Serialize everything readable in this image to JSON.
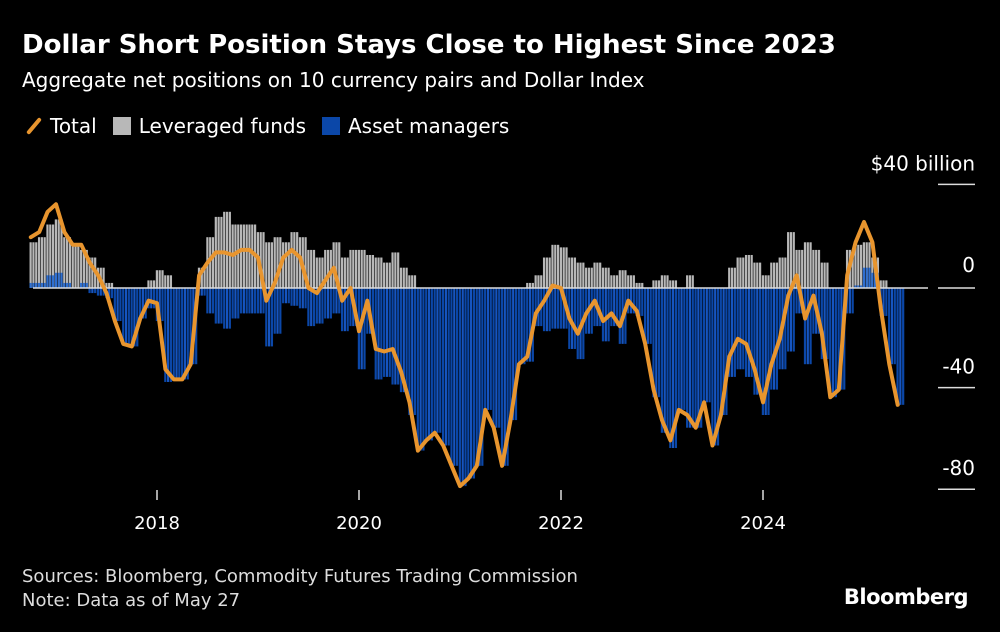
{
  "title": "Dollar Short Position Stays Close to Highest Since 2023",
  "subtitle": "Aggregate net positions on 10 currency pairs and Dollar Index",
  "footer": {
    "sources": "Sources: Bloomberg, Commodity Futures Trading Commission",
    "note": "Note: Data as of May 27"
  },
  "logo": "Bloomberg",
  "colors": {
    "total": "#e8952e",
    "leveraged": "#b8b8b8",
    "asset": "#0b47a8",
    "background": "#000000"
  },
  "chart_data": {
    "type": "bar",
    "overlay": "line",
    "stacked": true,
    "title": "Dollar Short Position Stays Close to Highest Since 2023",
    "subtitle": "Aggregate net positions on 10 currency pairs and Dollar Index",
    "unit_label": "$40 billion",
    "ylim": [
      -85,
      45
    ],
    "yticks": [
      40,
      0,
      -40,
      -80
    ],
    "ytick_labels": [
      "$40 billion",
      "0",
      "-40",
      "-80"
    ],
    "xticks": [
      "2018",
      "2020",
      "2022",
      "2024"
    ],
    "legend": {
      "position": "top-left",
      "entries": [
        "Total",
        "Leveraged funds",
        "Asset managers"
      ]
    },
    "grid": false,
    "x": [
      "2016-10",
      "2016-11",
      "2016-12",
      "2017-01",
      "2017-02",
      "2017-03",
      "2017-04",
      "2017-05",
      "2017-06",
      "2017-07",
      "2017-08",
      "2017-09",
      "2017-10",
      "2017-11",
      "2017-12",
      "2018-01",
      "2018-02",
      "2018-03",
      "2018-04",
      "2018-05",
      "2018-06",
      "2018-07",
      "2018-08",
      "2018-09",
      "2018-10",
      "2018-11",
      "2018-12",
      "2019-01",
      "2019-02",
      "2019-03",
      "2019-04",
      "2019-05",
      "2019-06",
      "2019-07",
      "2019-08",
      "2019-09",
      "2019-10",
      "2019-11",
      "2019-12",
      "2020-01",
      "2020-02",
      "2020-03",
      "2020-04",
      "2020-05",
      "2020-06",
      "2020-07",
      "2020-08",
      "2020-09",
      "2020-10",
      "2020-11",
      "2020-12",
      "2021-01",
      "2021-02",
      "2021-03",
      "2021-04",
      "2021-05",
      "2021-06",
      "2021-07",
      "2021-08",
      "2021-09",
      "2021-10",
      "2021-11",
      "2021-12",
      "2022-01",
      "2022-02",
      "2022-03",
      "2022-04",
      "2022-05",
      "2022-06",
      "2022-07",
      "2022-08",
      "2022-09",
      "2022-10",
      "2022-11",
      "2022-12",
      "2023-01",
      "2023-02",
      "2023-03",
      "2023-04",
      "2023-05",
      "2023-06",
      "2023-07",
      "2023-08",
      "2023-09",
      "2023-10",
      "2023-11",
      "2023-12",
      "2024-01",
      "2024-02",
      "2024-03",
      "2024-04",
      "2024-05",
      "2024-06",
      "2024-07",
      "2024-08",
      "2024-09",
      "2024-10",
      "2024-11",
      "2024-12",
      "2025-01",
      "2025-02",
      "2025-03",
      "2025-04",
      "2025-05"
    ],
    "series": [
      {
        "name": "Total",
        "type": "line",
        "values": [
          20,
          22,
          30,
          33,
          22,
          17,
          17,
          10,
          5,
          -2,
          -13,
          -22,
          -23,
          -12,
          -5,
          -6,
          -32,
          -36,
          -36,
          -30,
          5,
          10,
          14,
          14,
          13,
          15,
          15,
          12,
          -5,
          2,
          12,
          15,
          12,
          0,
          -2,
          3,
          8,
          -5,
          0,
          -17,
          -5,
          -24,
          -25,
          -24,
          -33,
          -45,
          -64,
          -60,
          -57,
          -62,
          -70,
          -78,
          -75,
          -70,
          -48,
          -55,
          -70,
          -52,
          -30,
          -27,
          -10,
          -5,
          1,
          0,
          -12,
          -18,
          -10,
          -5,
          -13,
          -10,
          -15,
          -5,
          -9,
          -22,
          -40,
          -52,
          -60,
          -48,
          -50,
          -55,
          -45,
          -62,
          -50,
          -27,
          -20,
          -22,
          -32,
          -45,
          -30,
          -20,
          -3,
          5,
          -12,
          -3,
          -18,
          -43,
          -40,
          5,
          18,
          26,
          18,
          -8,
          -30,
          -46
        ]
      },
      {
        "name": "Leveraged funds",
        "type": "bar",
        "values": [
          18,
          20,
          25,
          27,
          20,
          17,
          15,
          12,
          8,
          2,
          0,
          0,
          0,
          0,
          3,
          7,
          5,
          0,
          0,
          0,
          8,
          20,
          28,
          30,
          25,
          25,
          25,
          22,
          18,
          20,
          18,
          22,
          20,
          15,
          12,
          15,
          18,
          12,
          15,
          15,
          13,
          12,
          10,
          14,
          8,
          5,
          0,
          0,
          0,
          0,
          0,
          0,
          0,
          0,
          0,
          0,
          0,
          0,
          0,
          2,
          5,
          12,
          17,
          16,
          12,
          10,
          8,
          10,
          8,
          5,
          7,
          5,
          2,
          0,
          3,
          5,
          3,
          0,
          5,
          0,
          0,
          0,
          0,
          8,
          12,
          13,
          10,
          5,
          10,
          12,
          22,
          15,
          18,
          15,
          10,
          0,
          0,
          15,
          17,
          18,
          12,
          3,
          0,
          0
        ]
      },
      {
        "name": "Asset managers",
        "type": "bar",
        "values": [
          2,
          2,
          5,
          6,
          2,
          0,
          2,
          -2,
          -3,
          -4,
          -13,
          -22,
          -23,
          -12,
          -8,
          -13,
          -37,
          -36,
          -36,
          -30,
          -3,
          -10,
          -14,
          -16,
          -12,
          -10,
          -10,
          -10,
          -23,
          -18,
          -6,
          -7,
          -8,
          -15,
          -14,
          -12,
          -10,
          -17,
          -15,
          -32,
          -18,
          -36,
          -35,
          -38,
          -41,
          -50,
          -64,
          -60,
          -57,
          -62,
          -70,
          -78,
          -75,
          -70,
          -48,
          -55,
          -70,
          -52,
          -30,
          -29,
          -15,
          -17,
          -16,
          -16,
          -24,
          -28,
          -18,
          -15,
          -21,
          -15,
          -22,
          -10,
          -11,
          -22,
          -43,
          -57,
          -63,
          -48,
          -55,
          -55,
          -45,
          -62,
          -50,
          -35,
          -32,
          -35,
          -42,
          -50,
          -40,
          -32,
          -25,
          -10,
          -30,
          -18,
          -28,
          -43,
          -40,
          -10,
          1,
          8,
          6,
          -11,
          -30,
          -46
        ]
      }
    ]
  }
}
